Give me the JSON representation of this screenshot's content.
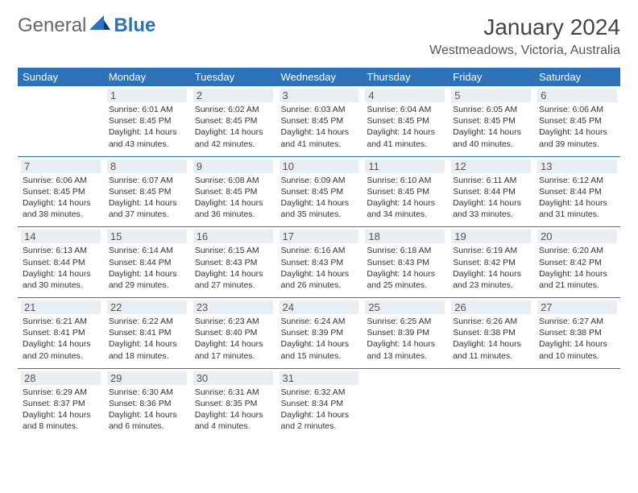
{
  "brand": {
    "word1": "General",
    "word2": "Blue"
  },
  "title": "January 2024",
  "location": "Westmeadows, Victoria, Australia",
  "colors": {
    "header_bg": "#2d72b8",
    "header_fg": "#ffffff",
    "daynum_bg": "#e9eef3",
    "border": "#2d72b8",
    "text": "#333333",
    "brand_gray": "#666666",
    "brand_blue": "#2d72b8"
  },
  "weekdays": [
    "Sunday",
    "Monday",
    "Tuesday",
    "Wednesday",
    "Thursday",
    "Friday",
    "Saturday"
  ],
  "weeks": [
    [
      null,
      {
        "n": "1",
        "sr": "6:01 AM",
        "ss": "8:45 PM",
        "dl": "14 hours and 43 minutes."
      },
      {
        "n": "2",
        "sr": "6:02 AM",
        "ss": "8:45 PM",
        "dl": "14 hours and 42 minutes."
      },
      {
        "n": "3",
        "sr": "6:03 AM",
        "ss": "8:45 PM",
        "dl": "14 hours and 41 minutes."
      },
      {
        "n": "4",
        "sr": "6:04 AM",
        "ss": "8:45 PM",
        "dl": "14 hours and 41 minutes."
      },
      {
        "n": "5",
        "sr": "6:05 AM",
        "ss": "8:45 PM",
        "dl": "14 hours and 40 minutes."
      },
      {
        "n": "6",
        "sr": "6:06 AM",
        "ss": "8:45 PM",
        "dl": "14 hours and 39 minutes."
      }
    ],
    [
      {
        "n": "7",
        "sr": "6:06 AM",
        "ss": "8:45 PM",
        "dl": "14 hours and 38 minutes."
      },
      {
        "n": "8",
        "sr": "6:07 AM",
        "ss": "8:45 PM",
        "dl": "14 hours and 37 minutes."
      },
      {
        "n": "9",
        "sr": "6:08 AM",
        "ss": "8:45 PM",
        "dl": "14 hours and 36 minutes."
      },
      {
        "n": "10",
        "sr": "6:09 AM",
        "ss": "8:45 PM",
        "dl": "14 hours and 35 minutes."
      },
      {
        "n": "11",
        "sr": "6:10 AM",
        "ss": "8:45 PM",
        "dl": "14 hours and 34 minutes."
      },
      {
        "n": "12",
        "sr": "6:11 AM",
        "ss": "8:44 PM",
        "dl": "14 hours and 33 minutes."
      },
      {
        "n": "13",
        "sr": "6:12 AM",
        "ss": "8:44 PM",
        "dl": "14 hours and 31 minutes."
      }
    ],
    [
      {
        "n": "14",
        "sr": "6:13 AM",
        "ss": "8:44 PM",
        "dl": "14 hours and 30 minutes."
      },
      {
        "n": "15",
        "sr": "6:14 AM",
        "ss": "8:44 PM",
        "dl": "14 hours and 29 minutes."
      },
      {
        "n": "16",
        "sr": "6:15 AM",
        "ss": "8:43 PM",
        "dl": "14 hours and 27 minutes."
      },
      {
        "n": "17",
        "sr": "6:16 AM",
        "ss": "8:43 PM",
        "dl": "14 hours and 26 minutes."
      },
      {
        "n": "18",
        "sr": "6:18 AM",
        "ss": "8:43 PM",
        "dl": "14 hours and 25 minutes."
      },
      {
        "n": "19",
        "sr": "6:19 AM",
        "ss": "8:42 PM",
        "dl": "14 hours and 23 minutes."
      },
      {
        "n": "20",
        "sr": "6:20 AM",
        "ss": "8:42 PM",
        "dl": "14 hours and 21 minutes."
      }
    ],
    [
      {
        "n": "21",
        "sr": "6:21 AM",
        "ss": "8:41 PM",
        "dl": "14 hours and 20 minutes."
      },
      {
        "n": "22",
        "sr": "6:22 AM",
        "ss": "8:41 PM",
        "dl": "14 hours and 18 minutes."
      },
      {
        "n": "23",
        "sr": "6:23 AM",
        "ss": "8:40 PM",
        "dl": "14 hours and 17 minutes."
      },
      {
        "n": "24",
        "sr": "6:24 AM",
        "ss": "8:39 PM",
        "dl": "14 hours and 15 minutes."
      },
      {
        "n": "25",
        "sr": "6:25 AM",
        "ss": "8:39 PM",
        "dl": "14 hours and 13 minutes."
      },
      {
        "n": "26",
        "sr": "6:26 AM",
        "ss": "8:38 PM",
        "dl": "14 hours and 11 minutes."
      },
      {
        "n": "27",
        "sr": "6:27 AM",
        "ss": "8:38 PM",
        "dl": "14 hours and 10 minutes."
      }
    ],
    [
      {
        "n": "28",
        "sr": "6:29 AM",
        "ss": "8:37 PM",
        "dl": "14 hours and 8 minutes."
      },
      {
        "n": "29",
        "sr": "6:30 AM",
        "ss": "8:36 PM",
        "dl": "14 hours and 6 minutes."
      },
      {
        "n": "30",
        "sr": "6:31 AM",
        "ss": "8:35 PM",
        "dl": "14 hours and 4 minutes."
      },
      {
        "n": "31",
        "sr": "6:32 AM",
        "ss": "8:34 PM",
        "dl": "14 hours and 2 minutes."
      },
      null,
      null,
      null
    ]
  ],
  "labels": {
    "sunrise": "Sunrise:",
    "sunset": "Sunset:",
    "daylight": "Daylight:"
  }
}
